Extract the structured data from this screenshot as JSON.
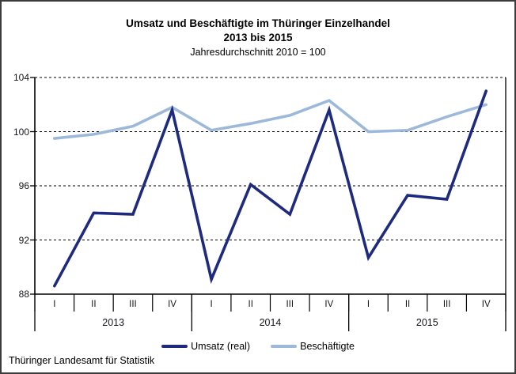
{
  "header": {
    "title_line1": "Umsatz und Beschäftigte im Thüringer Einzelhandel",
    "title_line2": "2013 bis 2015",
    "subtitle": "Jahresdurchschnitt 2010 = 100"
  },
  "footer": {
    "source": "Thüringer Landesamt für Statistik"
  },
  "chart_data": {
    "type": "line",
    "title": "Umsatz und Beschäftigte im Thüringer Einzelhandel 2013 bis 2015",
    "subtitle": "Jahresdurchschnitt 2010 = 100",
    "categories": [
      "I",
      "II",
      "III",
      "IV",
      "I",
      "II",
      "III",
      "IV",
      "I",
      "II",
      "III",
      "IV"
    ],
    "year_groups": [
      {
        "label": "2013",
        "span": 4
      },
      {
        "label": "2014",
        "span": 4
      },
      {
        "label": "2015",
        "span": 4
      }
    ],
    "y_ticks": [
      88,
      92,
      96,
      100,
      104
    ],
    "ylim": [
      88,
      104
    ],
    "grid": "horizontal-dashed",
    "legend_position": "bottom",
    "series": [
      {
        "name": "Umsatz (real)",
        "color": "#1e2a7d",
        "values": [
          88.6,
          94.0,
          93.9,
          101.6,
          89.1,
          96.1,
          93.9,
          101.6,
          90.7,
          95.3,
          95.0,
          103.0
        ]
      },
      {
        "name": "Beschäftigte",
        "color": "#9db9da",
        "values": [
          99.5,
          99.8,
          100.4,
          101.8,
          100.1,
          100.6,
          101.2,
          102.3,
          100.0,
          100.1,
          101.1,
          102.0
        ]
      }
    ]
  }
}
